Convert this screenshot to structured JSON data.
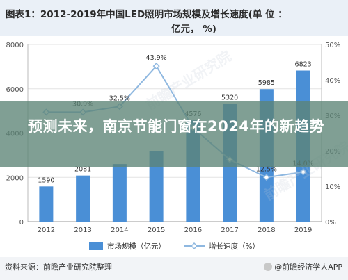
{
  "header": {
    "title_line1": "图表1：2012-2019年中国LED照明市场规模及增长速度(单 位 ：",
    "title_line2": "亿元，  %)"
  },
  "overlay": {
    "headline": "预测未来，南京节能门窗在2024年的新趋势"
  },
  "footer": {
    "source": "资料来源：前瞻产业研究院整理",
    "brand": "@前瞻经济学人APP"
  },
  "watermark": "前瞻产业研究院",
  "colors": {
    "bar": "#4a8fd6",
    "line": "#8fb8e0",
    "banner": "#5c8476"
  },
  "chart_data": {
    "type": "bar",
    "categories": [
      "2012",
      "2013",
      "2014",
      "2015",
      "2016",
      "2017",
      "2018",
      "2019"
    ],
    "series": [
      {
        "name": "市场规模（亿元）",
        "type": "bar",
        "axis": "left",
        "values": [
          1590,
          2081,
          2600,
          3200,
          4576,
          5320,
          5985,
          6823
        ],
        "labels": [
          "1590",
          "2081",
          "",
          "",
          "4576",
          "5320",
          "5985",
          "6823"
        ]
      },
      {
        "name": "增长速度（%）",
        "type": "line",
        "axis": "right",
        "values": [
          30.9,
          30.9,
          32.5,
          43.9,
          26.5,
          17.5,
          12.5,
          14.0
        ],
        "labels": [
          "",
          "30.9%",
          "32.5%",
          "43.9%",
          "",
          "",
          "12.5%",
          "14.0%"
        ]
      }
    ],
    "y_left": {
      "ticks": [
        "0",
        "2000",
        "4000",
        "6000",
        "8000"
      ],
      "range": [
        0,
        8000
      ]
    },
    "y_right": {
      "ticks": [
        "0%",
        "10%",
        "20%",
        "30%",
        "40%",
        "50%"
      ],
      "range": [
        0,
        50
      ]
    },
    "legend_position": "bottom",
    "grid": true
  }
}
